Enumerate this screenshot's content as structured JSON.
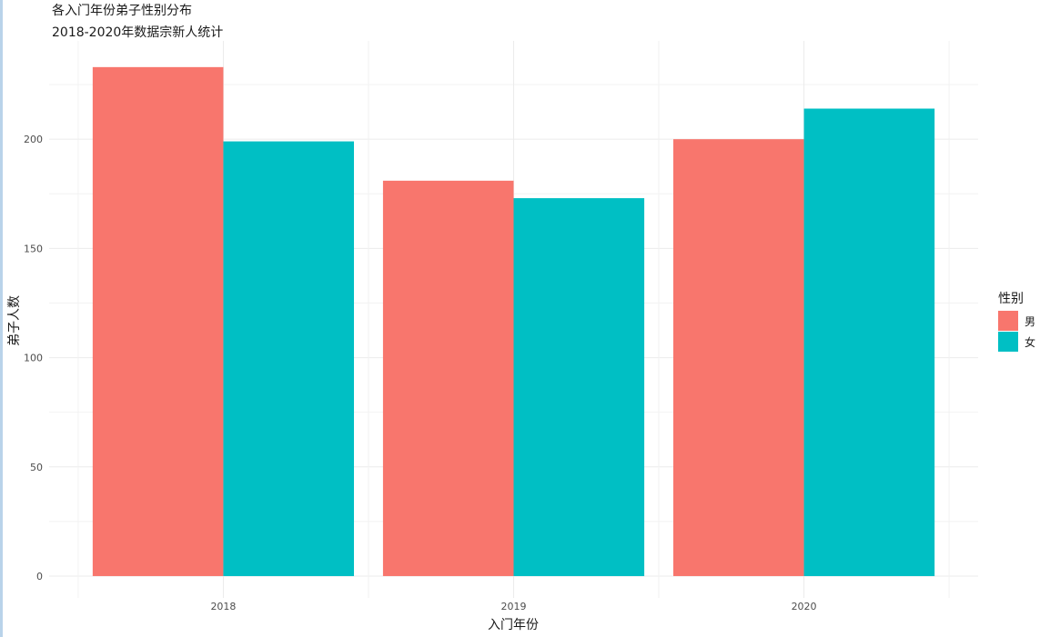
{
  "chart_data": {
    "type": "bar",
    "title": "各入门年份弟子性别分布",
    "subtitle": "2018-2020年数据宗新人统计",
    "xlabel": "入门年份",
    "ylabel": "弟子人数",
    "categories": [
      "2018",
      "2019",
      "2020"
    ],
    "series": [
      {
        "name": "男",
        "color": "#F8766D",
        "values": [
          233,
          181,
          200
        ]
      },
      {
        "name": "女",
        "color": "#00BFC4",
        "values": [
          199,
          173,
          214
        ]
      }
    ],
    "ylim": [
      -10,
      245
    ],
    "yticks": [
      0,
      50,
      100,
      150,
      200
    ],
    "legend": {
      "title": "性别",
      "position": "right"
    },
    "grid": true
  }
}
